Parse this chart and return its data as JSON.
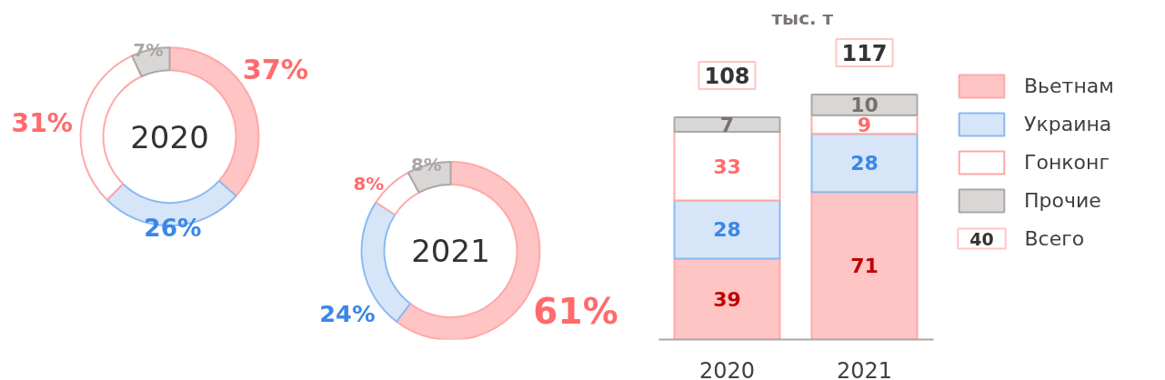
{
  "chart_data": [
    {
      "type": "donut",
      "title": "2020",
      "categories": [
        null,
        null,
        null,
        null
      ],
      "values": [
        37,
        26,
        31,
        7
      ],
      "colors": [
        "#ffc4c4",
        "#d6e6f8",
        "#ffffff",
        "#d9d7d6"
      ],
      "value_labels": [
        "37%",
        "26%",
        "31%",
        "7%"
      ]
    },
    {
      "type": "donut",
      "title": "2021",
      "categories": [
        null,
        null,
        null,
        null
      ],
      "values": [
        61,
        24,
        8,
        8
      ],
      "colors": [
        "#ffc4c4",
        "#d6e6f8",
        "#ffffff",
        "#d9d7d6"
      ],
      "value_labels": [
        "61%",
        "24%",
        "8%",
        "8%"
      ]
    },
    {
      "type": "bar",
      "title": "тыс. т",
      "categories": [
        "2020",
        "2021"
      ],
      "series": [
        {
          "name": "Вьетнам",
          "color": "#ffc4c4",
          "values": [
            39,
            71
          ]
        },
        {
          "name": "Украина",
          "color": "#d6e6f8",
          "values": [
            28,
            28
          ]
        },
        {
          "name": "Гонконг",
          "color": "#ffffff",
          "values": [
            33,
            9
          ]
        },
        {
          "name": "Прочие",
          "color": "#d9d7d6",
          "values": [
            7,
            10
          ]
        }
      ],
      "stacked": true,
      "data_labels": true,
      "totals": [
        "108",
        "117"
      ],
      "legend": "right",
      "annotations": [
        "40",
        "Всего"
      ]
    }
  ]
}
